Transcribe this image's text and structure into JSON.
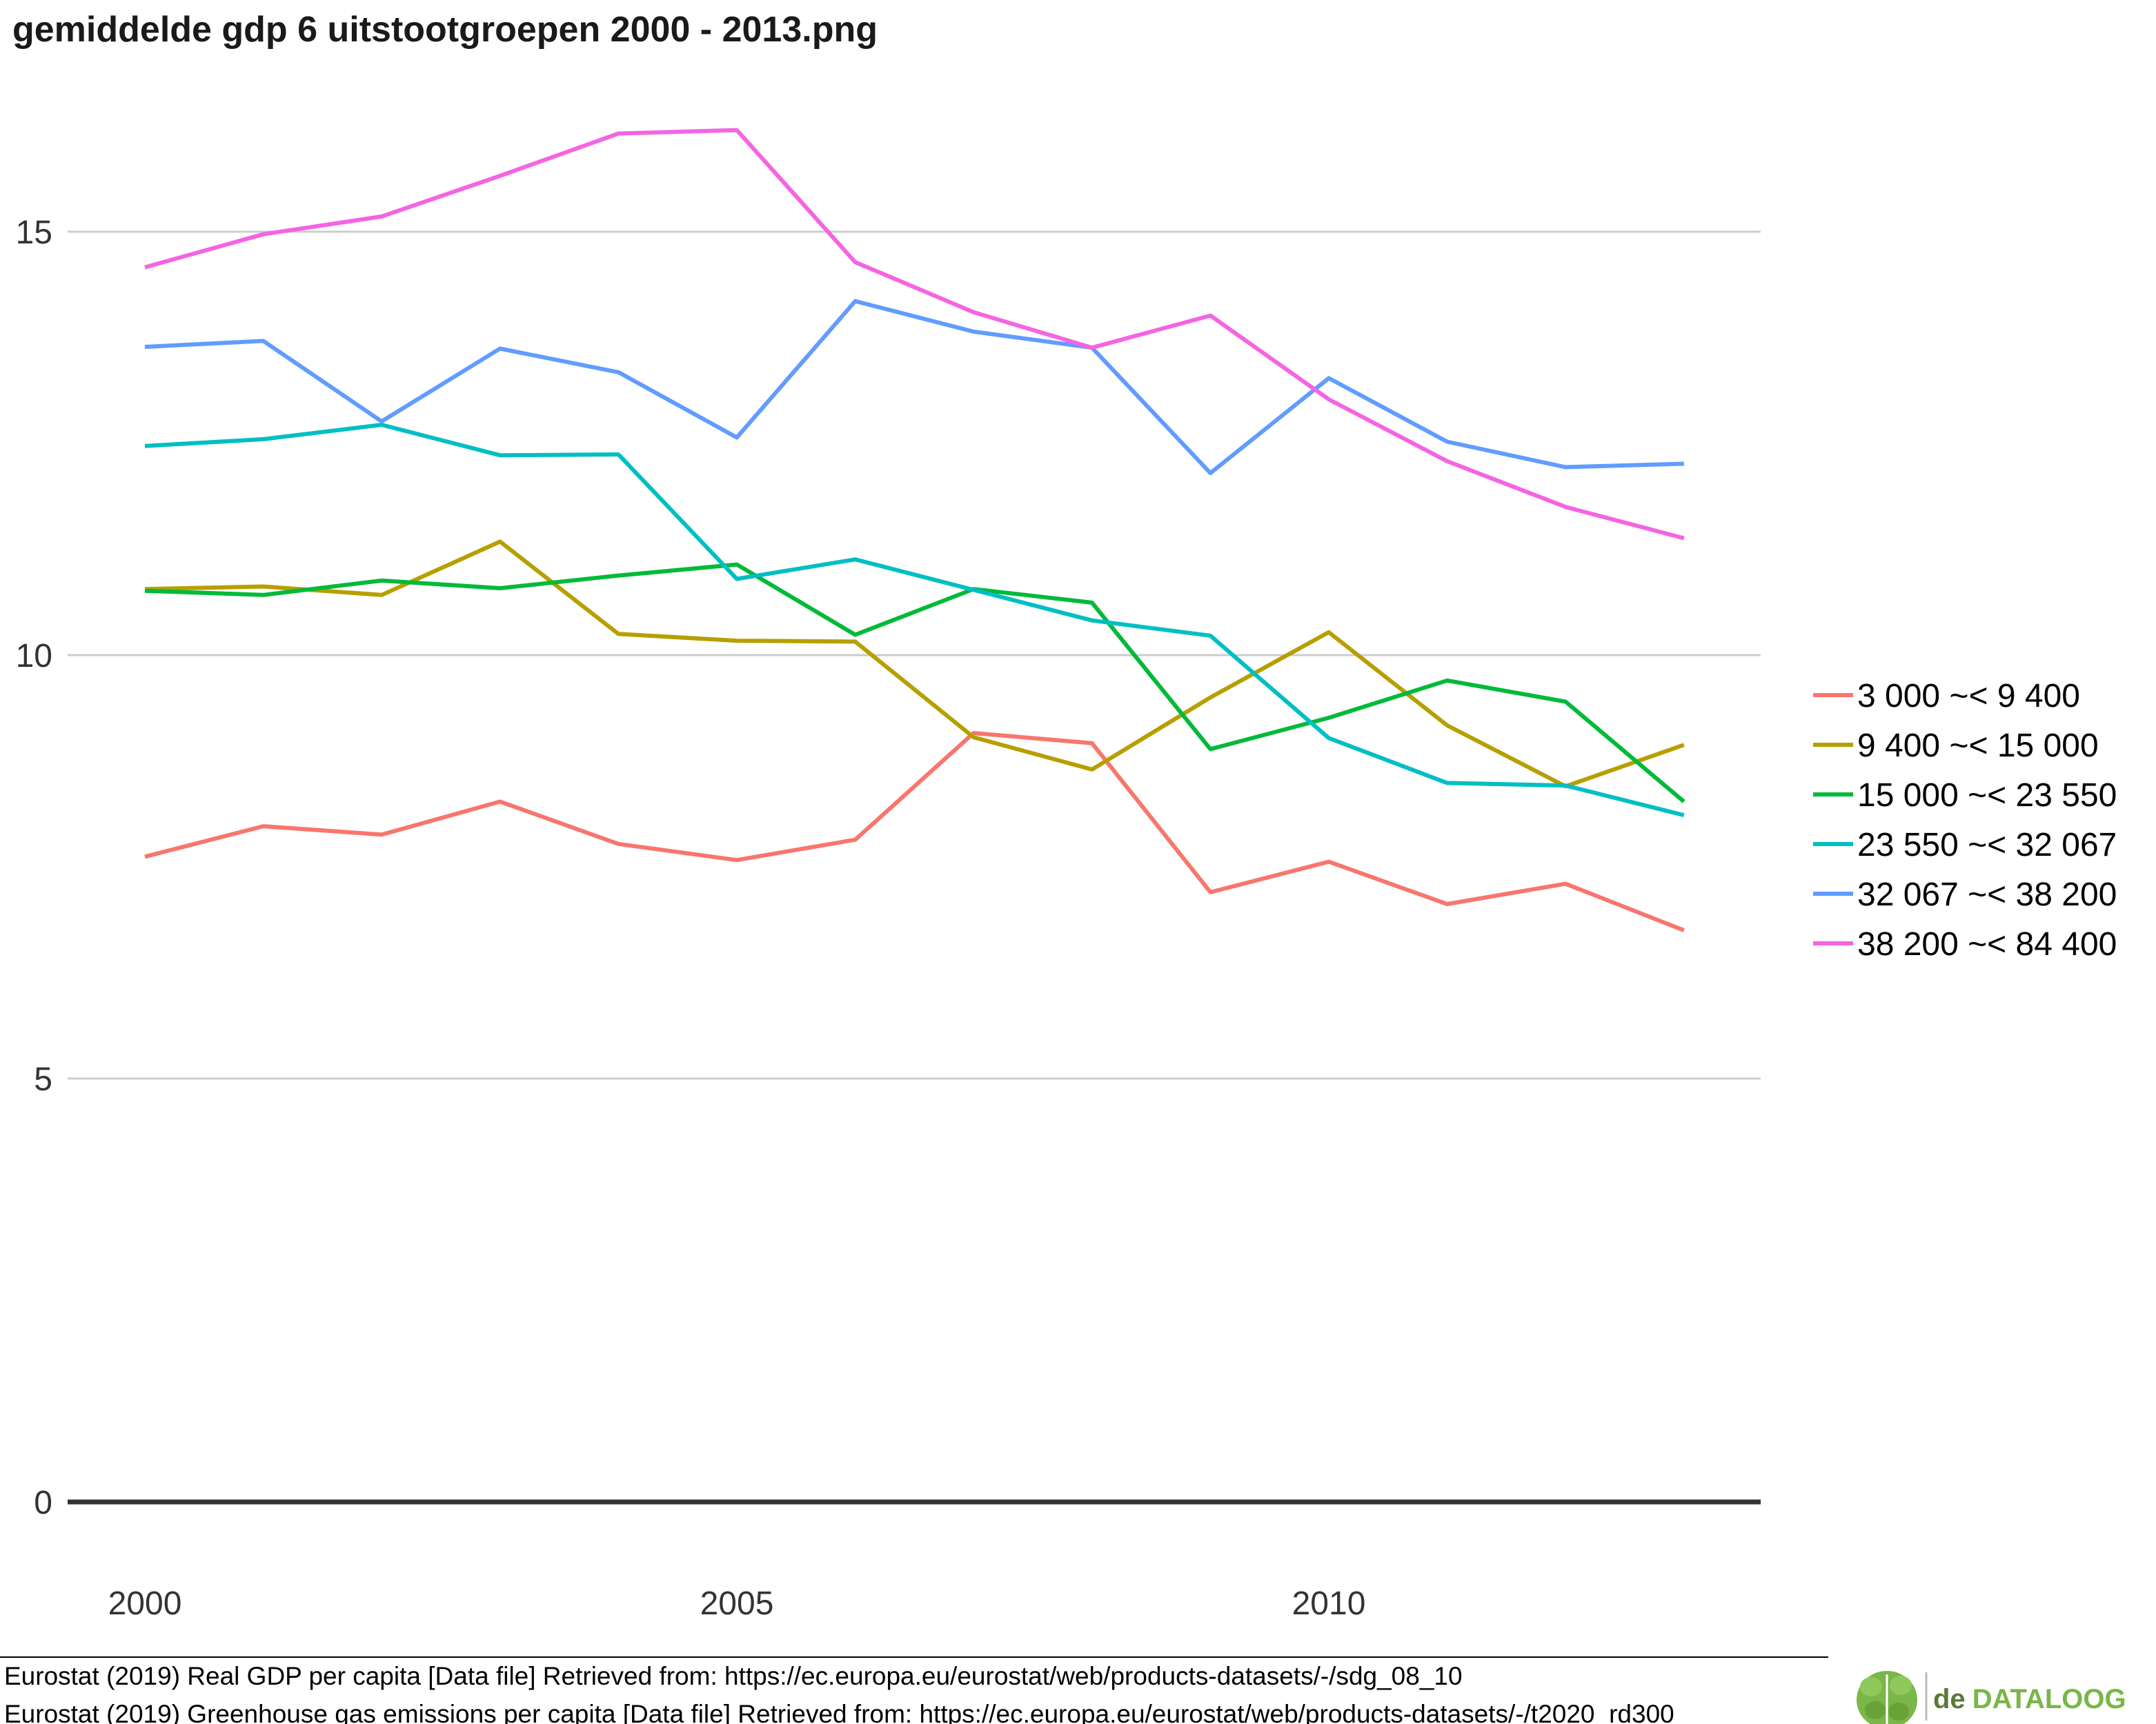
{
  "chart_data": {
    "type": "line",
    "title": "gemiddelde gdp 6 uitstootgroepen 2000 - 2013.png",
    "xlabel": "",
    "ylabel": "",
    "x": [
      2000,
      2001,
      2002,
      2003,
      2004,
      2005,
      2006,
      2007,
      2008,
      2009,
      2010,
      2011,
      2012,
      2013
    ],
    "xlim": [
      2000,
      2013
    ],
    "xticks": [
      "2000",
      "2005",
      "2010"
    ],
    "ylim": [
      0,
      16
    ],
    "yticks": [
      "0",
      "5",
      "10",
      "15"
    ],
    "grid": true,
    "legend_position": "right",
    "series": [
      {
        "name": "3 000 ~< 9 400",
        "color": "#f8766d",
        "values": [
          7.62,
          7.98,
          7.88,
          8.27,
          7.77,
          7.58,
          7.82,
          9.08,
          8.96,
          7.2,
          7.56,
          7.06,
          7.3,
          6.75
        ]
      },
      {
        "name": "9 400 ~< 15 000",
        "color": "#b79f00",
        "values": [
          10.78,
          10.81,
          10.71,
          11.34,
          10.25,
          10.17,
          10.16,
          9.03,
          8.65,
          9.5,
          10.27,
          9.17,
          8.45,
          8.94
        ]
      },
      {
        "name": "15 000 ~< 23 550",
        "color": "#00ba38",
        "values": [
          10.76,
          10.71,
          10.88,
          10.79,
          10.94,
          11.07,
          10.24,
          10.78,
          10.62,
          8.89,
          9.26,
          9.7,
          9.45,
          8.27
        ]
      },
      {
        "name": "23 550 ~< 32 067",
        "color": "#00bfc4",
        "values": [
          12.47,
          12.55,
          12.72,
          12.36,
          12.37,
          10.9,
          11.13,
          10.77,
          10.41,
          10.23,
          9.02,
          8.49,
          8.46,
          8.11
        ]
      },
      {
        "name": "32 067 ~< 38 200",
        "color": "#619cff",
        "values": [
          13.64,
          13.71,
          12.76,
          13.62,
          13.34,
          12.57,
          14.18,
          13.82,
          13.63,
          12.15,
          13.27,
          12.52,
          12.22,
          12.26
        ]
      },
      {
        "name": "38 200 ~< 84 400",
        "color": "#f564e3",
        "values": [
          14.58,
          14.97,
          15.18,
          15.66,
          16.16,
          16.2,
          14.64,
          14.05,
          13.63,
          14.01,
          13.02,
          12.29,
          11.75,
          11.38
        ]
      }
    ]
  },
  "captions": [
    "Eurostat (2019) Real GDP per capita [Data file] Retrieved from: https://ec.europa.eu/eurostat/web/products-datasets/-/sdg_08_10",
    "Eurostat (2019) Greenhouse gas emissions per capita [Data file] Retrieved from: https://ec.europa.eu/eurostat/web/products-datasets/-/t2020_rd300"
  ],
  "logo": {
    "prefix": "de",
    "main": "DATALOOG",
    "icon": "brain-icon"
  },
  "colors": {
    "grid": "#cccccc",
    "zero_line": "#333333",
    "logo_green": "#7ab648"
  }
}
